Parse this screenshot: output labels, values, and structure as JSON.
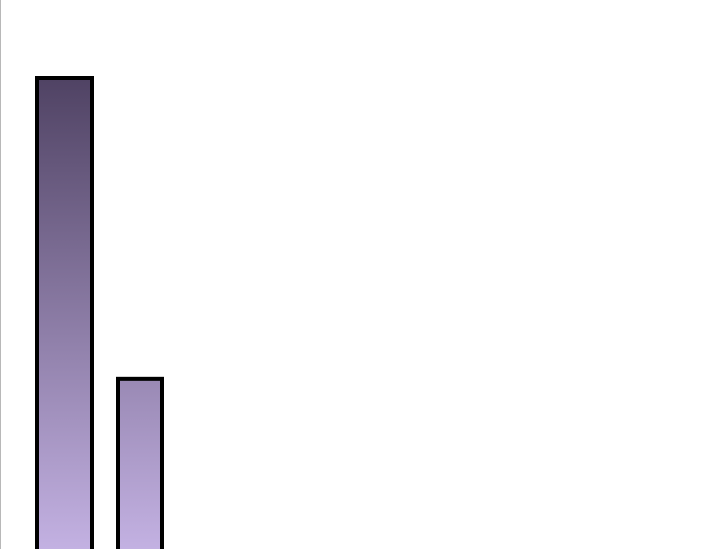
{
  "chart_data": {
    "type": "bar",
    "title": "",
    "xlabel": "",
    "ylabel": "",
    "categories": [
      "",
      ""
    ],
    "values": [
      100,
      36.4
    ],
    "grid": false,
    "colors": {
      "gradient_top": "#4f4263",
      "gradient_bottom": "#c3b1e2",
      "border": "#000000"
    }
  }
}
